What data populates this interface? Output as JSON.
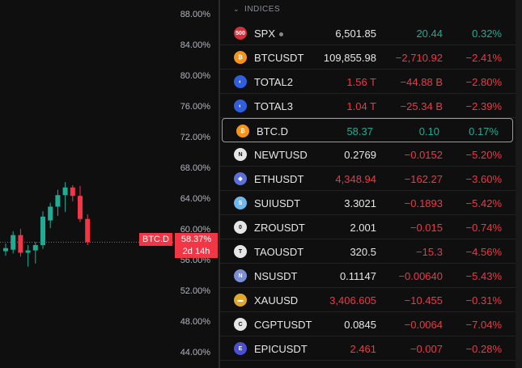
{
  "colors": {
    "up": "#22ab94",
    "down": "#f23645",
    "text": "#e6e6e6",
    "bg": "#0f0f0f"
  },
  "chart": {
    "y_ticks": [
      "88.00%",
      "84.00%",
      "80.00%",
      "76.00%",
      "72.00%",
      "68.00%",
      "64.00%",
      "60.00%",
      "56.00%",
      "52.00%",
      "48.00%",
      "44.00%"
    ],
    "symbol_tag": "BTC.D",
    "price_tag": "58.37%",
    "countdown_tag": "2d 14h"
  },
  "chart_data": {
    "type": "candlestick",
    "ylim": [
      42,
      90
    ],
    "candles": [
      {
        "o": 57.2,
        "h": 58.2,
        "l": 56.6,
        "c": 57.6
      },
      {
        "o": 57.4,
        "h": 59.8,
        "l": 56.9,
        "c": 59.3
      },
      {
        "o": 59.3,
        "h": 60.1,
        "l": 56.5,
        "c": 57.0
      },
      {
        "o": 57.0,
        "h": 58.0,
        "l": 55.2,
        "c": 57.3
      },
      {
        "o": 57.3,
        "h": 58.4,
        "l": 55.6,
        "c": 58.0
      },
      {
        "o": 58.0,
        "h": 62.4,
        "l": 57.5,
        "c": 61.7
      },
      {
        "o": 61.2,
        "h": 63.5,
        "l": 60.2,
        "c": 63.0
      },
      {
        "o": 63.0,
        "h": 65.2,
        "l": 61.8,
        "c": 64.5
      },
      {
        "o": 64.5,
        "h": 66.2,
        "l": 62.3,
        "c": 65.5
      },
      {
        "o": 65.5,
        "h": 65.8,
        "l": 63.7,
        "c": 64.4
      },
      {
        "o": 64.4,
        "h": 65.7,
        "l": 61.0,
        "c": 61.4
      },
      {
        "o": 61.4,
        "h": 62.0,
        "l": 58.0,
        "c": 58.37
      }
    ]
  },
  "watchlist": {
    "section": "INDICES",
    "rows": [
      {
        "icon": "500",
        "icon_bg": "#d32f3c",
        "symbol": "SPX",
        "dot": true,
        "last": "6,501.85",
        "last_dir": "wh",
        "change": "20.44",
        "percent": "0.32%",
        "dir": "up"
      },
      {
        "icon": "₿",
        "icon_bg": "#f7931a",
        "symbol": "BTCUSDT",
        "last": "109,855.98",
        "last_dir": "wh",
        "change": "−2,710.92",
        "percent": "−2.41%",
        "dir": "dn"
      },
      {
        "icon": "◐",
        "icon_bg": "#2f5fe0",
        "symbol": "TOTAL2",
        "last": "1.56 T",
        "last_dir": "dn",
        "change": "−44.88 B",
        "percent": "−2.80%",
        "dir": "dn"
      },
      {
        "icon": "◐",
        "icon_bg": "#2f5fe0",
        "symbol": "TOTAL3",
        "last": "1.04 T",
        "last_dir": "dn",
        "change": "−25.34 B",
        "percent": "−2.39%",
        "dir": "dn"
      },
      {
        "icon": "₿",
        "icon_bg": "#f7931a",
        "symbol": "BTC.D",
        "last": "58.37",
        "last_dir": "up",
        "change": "0.10",
        "percent": "0.17%",
        "dir": "up",
        "selected": true
      },
      {
        "icon": "N",
        "icon_bg": "#e6e6e6",
        "symbol": "NEWTUSD",
        "last": "0.2769",
        "last_dir": "wh",
        "change": "−0.0152",
        "percent": "−5.20%",
        "dir": "dn"
      },
      {
        "icon": "◆",
        "icon_bg": "#5a6fd8",
        "symbol": "ETHUSDT",
        "last": "4,348.94",
        "last_dir": "dn",
        "change": "−162.27",
        "percent": "−3.60%",
        "dir": "dn"
      },
      {
        "icon": "S",
        "icon_bg": "#6fb8ee",
        "symbol": "SUIUSDT",
        "last": "3.3021",
        "last_dir": "wh",
        "change": "−0.1893",
        "percent": "−5.42%",
        "dir": "dn"
      },
      {
        "icon": "0",
        "icon_bg": "#e6e6e6",
        "symbol": "ZROUSDT",
        "last": "2.001",
        "last_dir": "wh",
        "change": "−0.015",
        "percent": "−0.74%",
        "dir": "dn"
      },
      {
        "icon": "T",
        "icon_bg": "#e6e6e6",
        "symbol": "TAOUSDT",
        "last": "320.5",
        "last_dir": "wh",
        "change": "−15.3",
        "percent": "−4.56%",
        "dir": "dn"
      },
      {
        "icon": "N",
        "icon_bg": "#7b8fd8",
        "symbol": "NSUSDT",
        "last": "0.11147",
        "last_dir": "wh",
        "change": "−0.00640",
        "percent": "−5.43%",
        "dir": "dn"
      },
      {
        "icon": "▬",
        "icon_bg": "#e0a82a",
        "symbol": "XAUUSD",
        "last": "3,406.605",
        "last_dir": "dn",
        "change": "−10.455",
        "percent": "−0.31%",
        "dir": "dn"
      },
      {
        "icon": "C",
        "icon_bg": "#e6e6e6",
        "symbol": "CGPTUSDT",
        "last": "0.0845",
        "last_dir": "wh",
        "change": "−0.0064",
        "percent": "−7.04%",
        "dir": "dn"
      },
      {
        "icon": "E",
        "icon_bg": "#4a4fd8",
        "symbol": "EPICUSDT",
        "last": "2.461",
        "last_dir": "dn",
        "change": "−0.007",
        "percent": "−0.28%",
        "dir": "dn"
      }
    ]
  }
}
